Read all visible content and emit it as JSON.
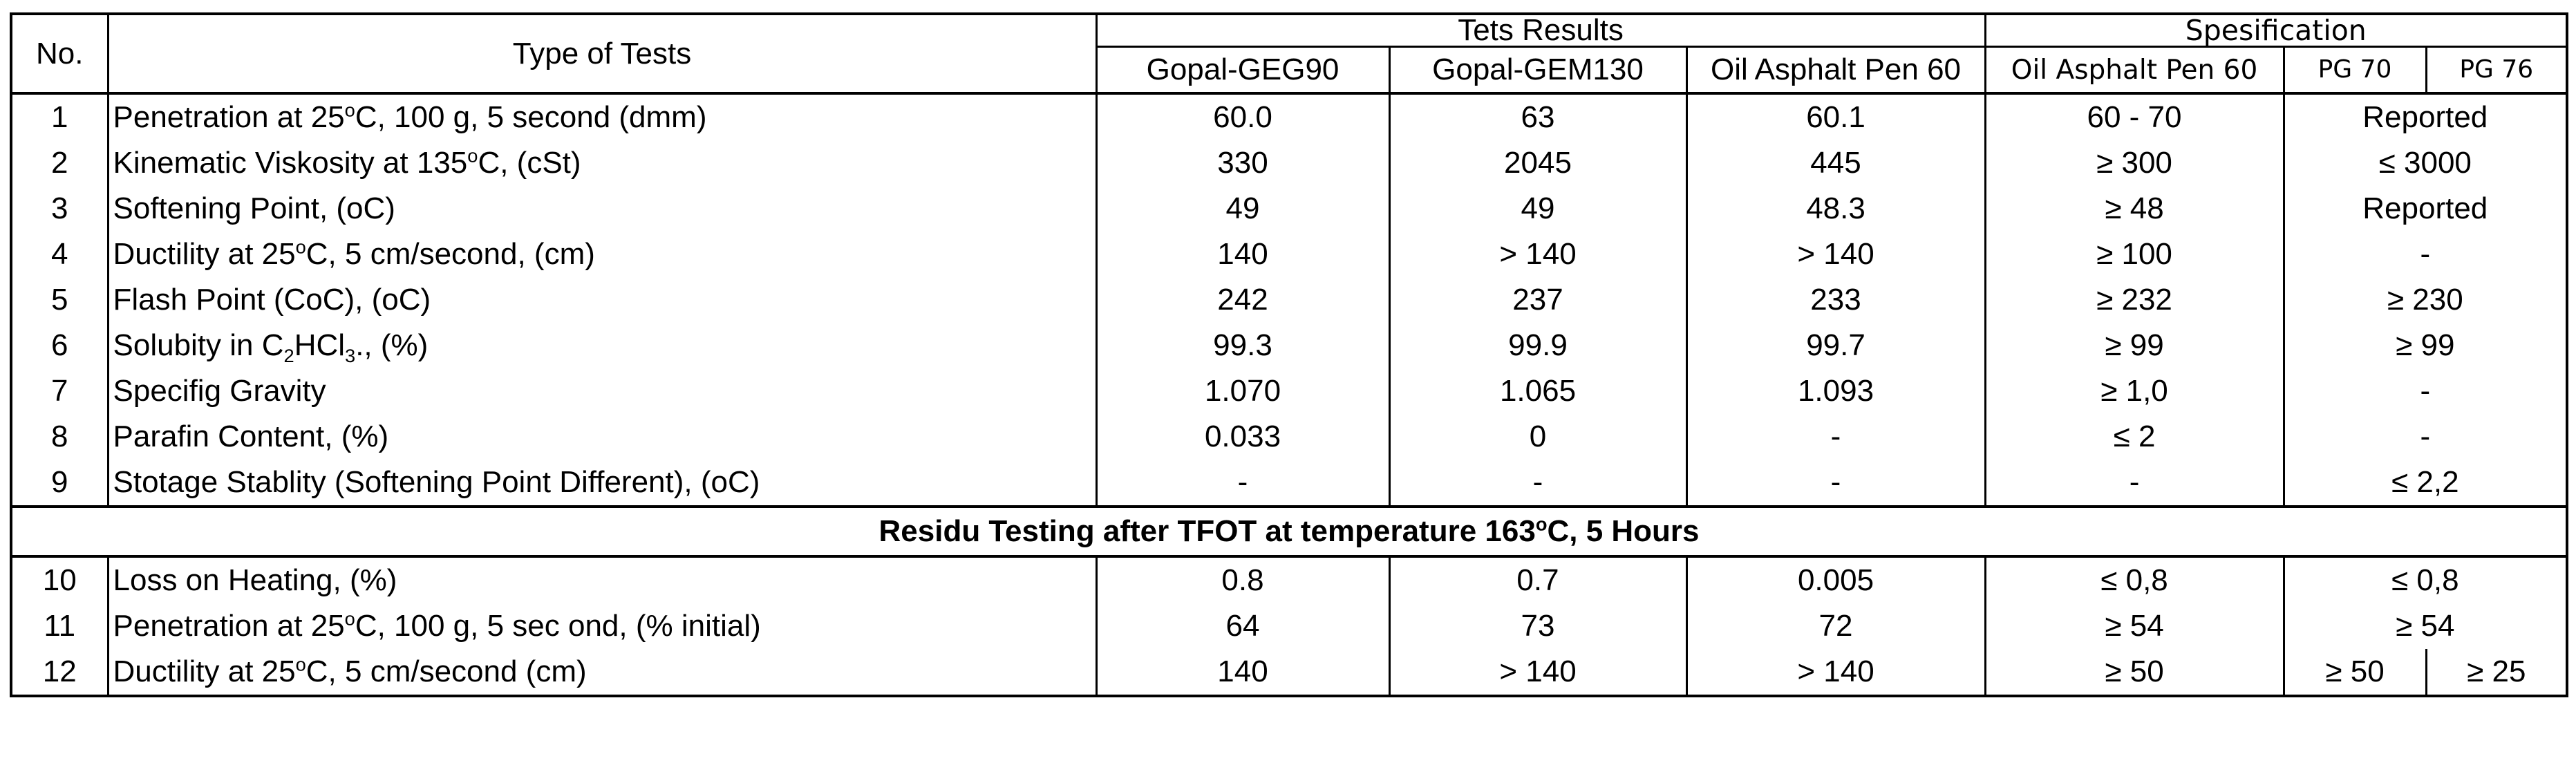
{
  "headers": {
    "no": "No.",
    "type": "Type of Tests",
    "results_group": "Tets Results",
    "spec_group": "Spesification",
    "results": [
      "Gopal-GEG90",
      "Gopal-GEM130",
      "Oil Asphalt Pen 60"
    ],
    "spec": [
      "Oil Asphalt  Pen 60",
      "PG 70",
      "PG 76"
    ]
  },
  "rows": [
    {
      "no": "1",
      "type_a": "Penetration at 25",
      "type_sup": "o",
      "type_b": "C, 100 g, 5 second (dmm)",
      "r1": "60.0",
      "r2": "63",
      "r3": "60.1",
      "spec": "60 - 70",
      "pg": "Reported"
    },
    {
      "no": "2",
      "type_a": "Kinematic Viskosity at 135",
      "type_sup": "o",
      "type_b": "C, (cSt)",
      "r1": "330",
      "r2": "2045",
      "r3": "445",
      "spec": "≥ 300",
      "pg": "≤ 3000"
    },
    {
      "no": "3",
      "type_a": "Softening Point,  (oC)",
      "type_sup": "",
      "type_b": "",
      "r1": "49",
      "r2": "49",
      "r3": "48.3",
      "spec": "≥ 48",
      "pg": "Reported"
    },
    {
      "no": "4",
      "type_a": "Ductility at 25",
      "type_sup": "o",
      "type_b": "C, 5 cm/second, (cm)",
      "r1": "140",
      "r2": "> 140",
      "r3": "> 140",
      "spec": "≥ 100",
      "pg": "-"
    },
    {
      "no": "5",
      "type_a": "Flash Point (CoC),  (oC)",
      "type_sup": "",
      "type_b": "",
      "r1": "242",
      "r2": "237",
      "r3": "233",
      "spec": "≥ 232",
      "pg": "≥ 230"
    },
    {
      "no": "6",
      "type_a": "Solubity in C",
      "sub1": "2",
      "type_mid": "HCl",
      "sub2": "3",
      "type_b": "., (%)",
      "r1": "99.3",
      "r2": "99.9",
      "r3": "99.7",
      "spec": "≥ 99",
      "pg": "≥ 99"
    },
    {
      "no": "7",
      "type_a": "Specifig Gravity",
      "type_sup": "",
      "type_b": "",
      "r1": "1.070",
      "r2": "1.065",
      "r3": "1.093",
      "spec": "≥ 1,0",
      "pg": "-"
    },
    {
      "no": "8",
      "type_a": "Parafin Content, (%)",
      "type_sup": "",
      "type_b": "",
      "r1": "0.033",
      "r2": "0",
      "r3": "-",
      "spec": "≤ 2",
      "pg": "-"
    },
    {
      "no": "9",
      "type_a": "Stotage Stablity (Softening Point Different),  (oC)",
      "type_sup": "",
      "type_b": "",
      "r1": "-",
      "r2": "-",
      "r3": "-",
      "spec": "-",
      "pg": "≤ 2,2"
    }
  ],
  "section": {
    "text_a": "Residu Testing after TFOT at temperature 163",
    "text_sup": "o",
    "text_b": "C, 5 Hours"
  },
  "residue_rows": [
    {
      "no": "10",
      "type_a": "Loss on Heating, (%)",
      "type_sup": "",
      "type_b": "",
      "r1": "0.8",
      "r2": "0.7",
      "r3": "0.005",
      "spec": "≤ 0,8",
      "pg": "≤ 0,8"
    },
    {
      "no": "11",
      "type_a": "Penetration at 25",
      "type_sup": "o",
      "type_b": "C, 100 g, 5 sec ond,  (% initial)",
      "r1": "64",
      "r2": "73",
      "r3": "72",
      "spec": "≥ 54",
      "pg": "≥ 54"
    },
    {
      "no": "12",
      "type_a": "Ductility at 25",
      "type_sup": "o",
      "type_b": "C, 5 cm/second (cm)",
      "r1": "140",
      "r2": "> 140",
      "r3": "> 140",
      "spec": "≥ 50",
      "pg70": "≥ 50",
      "pg76": "≥ 25"
    }
  ]
}
